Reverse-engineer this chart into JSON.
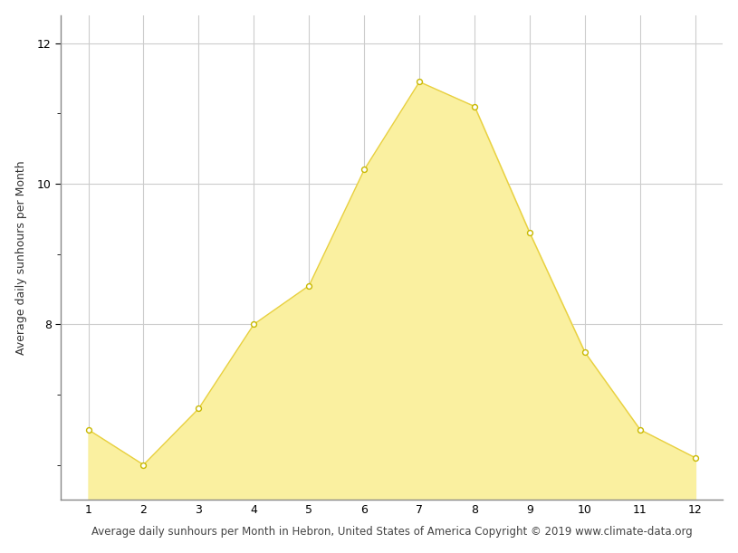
{
  "months": [
    1,
    2,
    3,
    4,
    5,
    6,
    7,
    8,
    9,
    10,
    11,
    12
  ],
  "sunhours": [
    6.5,
    6.0,
    6.8,
    8.0,
    8.55,
    10.2,
    11.45,
    11.1,
    9.3,
    7.6,
    6.5,
    6.1
  ],
  "fill_color": "#FAF0A0",
  "line_color": "#E8D040",
  "marker_facecolor": "white",
  "marker_edgecolor": "#C8B800",
  "ylabel": "Average daily sunhours per Month",
  "xlabel": "Average daily sunhours per Month in Hebron, United States of America Copyright © 2019 www.climate-data.org",
  "ylim_min": 5.5,
  "ylim_max": 12.4,
  "xlim_min": 0.5,
  "xlim_max": 12.5,
  "yticks": [
    8,
    10,
    12
  ],
  "xticks": [
    1,
    2,
    3,
    4,
    5,
    6,
    7,
    8,
    9,
    10,
    11,
    12
  ],
  "grid_color": "#cccccc",
  "bg_color": "#ffffff",
  "spine_color": "#888888",
  "label_fontsize": 9,
  "tick_fontsize": 9,
  "xlabel_fontsize": 8.5
}
